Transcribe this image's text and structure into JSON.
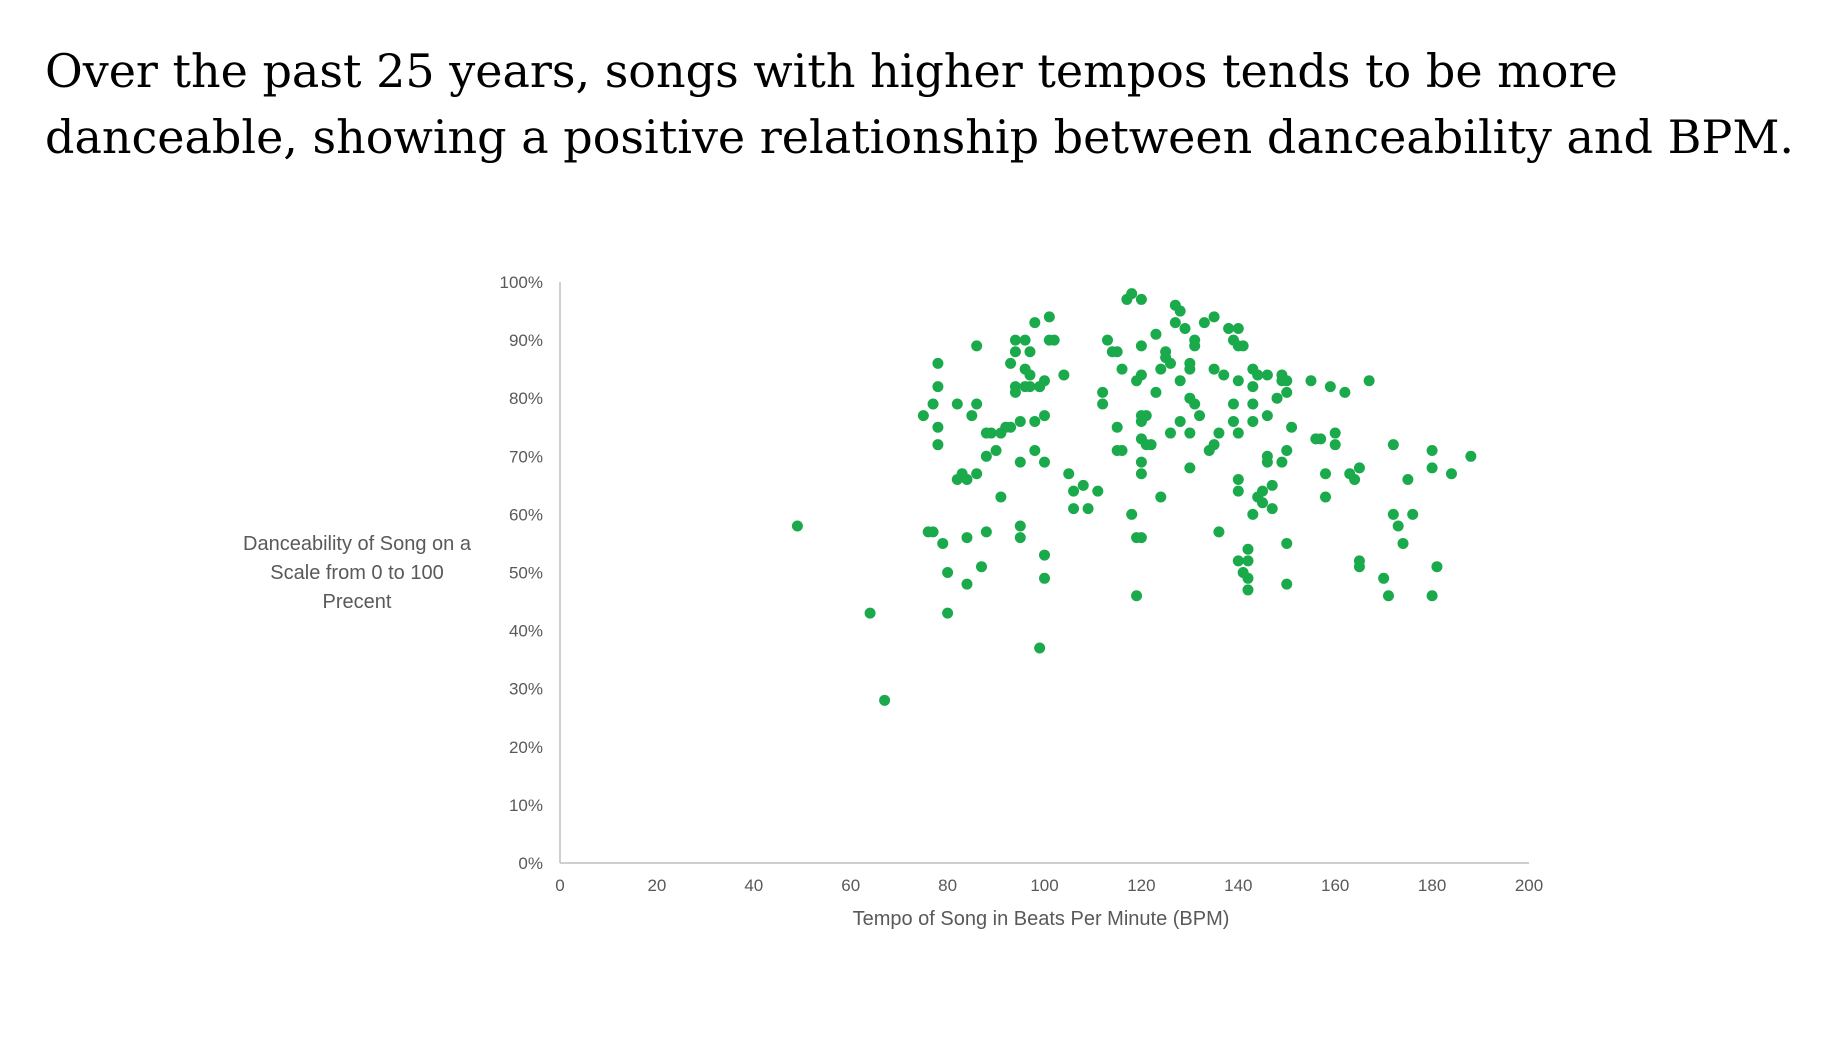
{
  "title": "Over the past 25 years, songs with higher tempos tends to be more danceable, showing a positive relationship between danceability and BPM.",
  "chart_data": {
    "type": "scatter",
    "xlabel": "Tempo of Song in Beats Per Minute (BPM)",
    "ylabel_lines": [
      "Danceability of Song on a",
      "Scale from 0 to 100",
      "Precent"
    ],
    "xlim": [
      0,
      200
    ],
    "ylim": [
      0,
      100
    ],
    "x_ticks": [
      "0",
      "20",
      "40",
      "60",
      "80",
      "100",
      "120",
      "140",
      "160",
      "180",
      "200"
    ],
    "y_ticks": [
      "0%",
      "10%",
      "20%",
      "30%",
      "40%",
      "50%",
      "60%",
      "70%",
      "80%",
      "90%",
      "100%"
    ],
    "grid": false,
    "marker_color": "#1aaa4b",
    "axis_color": "#bfbfbf",
    "points": [
      [
        49,
        58
      ],
      [
        64,
        43
      ],
      [
        67,
        28
      ],
      [
        75,
        77
      ],
      [
        76,
        57
      ],
      [
        77,
        57
      ],
      [
        77,
        79
      ],
      [
        78,
        82
      ],
      [
        78,
        72
      ],
      [
        78,
        86
      ],
      [
        78,
        75
      ],
      [
        79,
        55
      ],
      [
        80,
        50
      ],
      [
        80,
        43
      ],
      [
        82,
        79
      ],
      [
        82,
        66
      ],
      [
        83,
        67
      ],
      [
        84,
        66
      ],
      [
        84,
        56
      ],
      [
        84,
        48
      ],
      [
        85,
        77
      ],
      [
        86,
        79
      ],
      [
        86,
        89
      ],
      [
        86,
        67
      ],
      [
        87,
        51
      ],
      [
        88,
        57
      ],
      [
        88,
        70
      ],
      [
        88,
        74
      ],
      [
        89,
        74
      ],
      [
        90,
        71
      ],
      [
        91,
        63
      ],
      [
        91,
        74
      ],
      [
        92,
        75
      ],
      [
        93,
        75
      ],
      [
        93,
        86
      ],
      [
        94,
        90
      ],
      [
        94,
        81
      ],
      [
        94,
        88
      ],
      [
        94,
        82
      ],
      [
        95,
        76
      ],
      [
        95,
        58
      ],
      [
        95,
        56
      ],
      [
        95,
        69
      ],
      [
        96,
        85
      ],
      [
        96,
        90
      ],
      [
        96,
        82
      ],
      [
        97,
        82
      ],
      [
        97,
        84
      ],
      [
        97,
        88
      ],
      [
        98,
        93
      ],
      [
        98,
        71
      ],
      [
        98,
        76
      ],
      [
        99,
        82
      ],
      [
        99,
        37
      ],
      [
        99,
        82
      ],
      [
        100,
        69
      ],
      [
        100,
        83
      ],
      [
        100,
        77
      ],
      [
        100,
        53
      ],
      [
        100,
        49
      ],
      [
        101,
        94
      ],
      [
        101,
        90
      ],
      [
        102,
        90
      ],
      [
        104,
        84
      ],
      [
        105,
        67
      ],
      [
        106,
        64
      ],
      [
        106,
        61
      ],
      [
        108,
        65
      ],
      [
        109,
        61
      ],
      [
        111,
        64
      ],
      [
        112,
        79
      ],
      [
        112,
        81
      ],
      [
        113,
        90
      ],
      [
        114,
        88
      ],
      [
        115,
        88
      ],
      [
        115,
        75
      ],
      [
        115,
        71
      ],
      [
        116,
        71
      ],
      [
        116,
        85
      ],
      [
        117,
        97
      ],
      [
        118,
        98
      ],
      [
        118,
        60
      ],
      [
        119,
        83
      ],
      [
        119,
        56
      ],
      [
        119,
        46
      ],
      [
        120,
        97
      ],
      [
        120,
        89
      ],
      [
        120,
        84
      ],
      [
        120,
        77
      ],
      [
        120,
        76
      ],
      [
        120,
        73
      ],
      [
        120,
        69
      ],
      [
        120,
        67
      ],
      [
        120,
        56
      ],
      [
        121,
        77
      ],
      [
        121,
        72
      ],
      [
        122,
        72
      ],
      [
        123,
        91
      ],
      [
        123,
        81
      ],
      [
        124,
        63
      ],
      [
        124,
        85
      ],
      [
        125,
        87
      ],
      [
        125,
        88
      ],
      [
        126,
        86
      ],
      [
        126,
        74
      ],
      [
        127,
        96
      ],
      [
        127,
        93
      ],
      [
        128,
        95
      ],
      [
        128,
        83
      ],
      [
        128,
        76
      ],
      [
        129,
        92
      ],
      [
        130,
        86
      ],
      [
        130,
        85
      ],
      [
        130,
        80
      ],
      [
        130,
        74
      ],
      [
        130,
        68
      ],
      [
        131,
        89
      ],
      [
        131,
        90
      ],
      [
        131,
        79
      ],
      [
        132,
        77
      ],
      [
        133,
        93
      ],
      [
        134,
        71
      ],
      [
        135,
        94
      ],
      [
        135,
        72
      ],
      [
        135,
        85
      ],
      [
        136,
        57
      ],
      [
        136,
        74
      ],
      [
        137,
        84
      ],
      [
        138,
        92
      ],
      [
        139,
        90
      ],
      [
        139,
        79
      ],
      [
        139,
        76
      ],
      [
        140,
        92
      ],
      [
        140,
        89
      ],
      [
        140,
        83
      ],
      [
        140,
        74
      ],
      [
        140,
        66
      ],
      [
        140,
        64
      ],
      [
        140,
        52
      ],
      [
        141,
        50
      ],
      [
        141,
        89
      ],
      [
        142,
        54
      ],
      [
        142,
        47
      ],
      [
        142,
        52
      ],
      [
        142,
        49
      ],
      [
        143,
        85
      ],
      [
        143,
        82
      ],
      [
        143,
        79
      ],
      [
        143,
        76
      ],
      [
        143,
        60
      ],
      [
        144,
        63
      ],
      [
        144,
        84
      ],
      [
        145,
        64
      ],
      [
        145,
        62
      ],
      [
        146,
        84
      ],
      [
        146,
        70
      ],
      [
        146,
        69
      ],
      [
        146,
        77
      ],
      [
        147,
        65
      ],
      [
        147,
        61
      ],
      [
        148,
        80
      ],
      [
        149,
        84
      ],
      [
        149,
        83
      ],
      [
        149,
        69
      ],
      [
        150,
        71
      ],
      [
        150,
        55
      ],
      [
        150,
        48
      ],
      [
        150,
        81
      ],
      [
        150,
        83
      ],
      [
        151,
        75
      ],
      [
        155,
        83
      ],
      [
        156,
        73
      ],
      [
        157,
        73
      ],
      [
        158,
        67
      ],
      [
        158,
        63
      ],
      [
        159,
        82
      ],
      [
        160,
        74
      ],
      [
        160,
        72
      ],
      [
        162,
        81
      ],
      [
        163,
        67
      ],
      [
        164,
        66
      ],
      [
        165,
        68
      ],
      [
        165,
        52
      ],
      [
        165,
        51
      ],
      [
        167,
        83
      ],
      [
        170,
        49
      ],
      [
        171,
        46
      ],
      [
        172,
        60
      ],
      [
        172,
        72
      ],
      [
        173,
        58
      ],
      [
        174,
        55
      ],
      [
        175,
        66
      ],
      [
        176,
        60
      ],
      [
        180,
        71
      ],
      [
        180,
        68
      ],
      [
        180,
        46
      ],
      [
        181,
        51
      ],
      [
        184,
        67
      ],
      [
        188,
        70
      ]
    ]
  }
}
